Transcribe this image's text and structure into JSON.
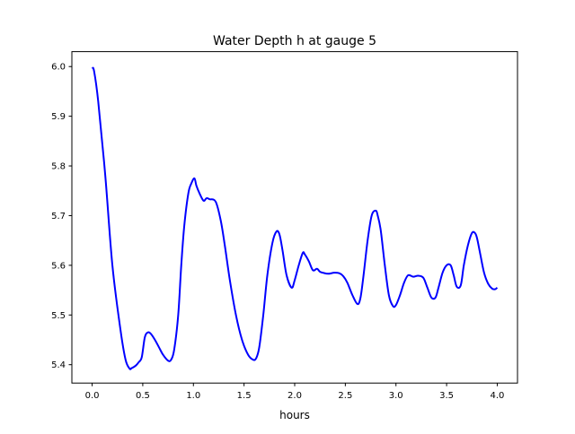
{
  "chart_data": {
    "type": "line",
    "title": "Water Depth h at gauge 5",
    "xlabel": "hours",
    "ylabel": "",
    "xlim": [
      -0.2,
      4.2
    ],
    "ylim": [
      5.363,
      6.03
    ],
    "xticks": [
      0.0,
      0.5,
      1.0,
      1.5,
      2.0,
      2.5,
      3.0,
      3.5,
      4.0
    ],
    "xtick_labels": [
      "0.0",
      "0.5",
      "1.0",
      "1.5",
      "2.0",
      "2.5",
      "3.0",
      "3.5",
      "4.0"
    ],
    "yticks": [
      5.4,
      5.5,
      5.6,
      5.7,
      5.8,
      5.9,
      6.0
    ],
    "ytick_labels": [
      "5.4",
      "5.5",
      "5.6",
      "5.7",
      "5.8",
      "5.9",
      "6.0"
    ],
    "grid": false,
    "series": [
      {
        "name": "h",
        "color": "#0000ff",
        "x": [
          0.0,
          0.02,
          0.06,
          0.13,
          0.2,
          0.28,
          0.33,
          0.37,
          0.39,
          0.43,
          0.46,
          0.49,
          0.52,
          0.55,
          0.58,
          0.62,
          0.66,
          0.7,
          0.75,
          0.78,
          0.81,
          0.85,
          0.88,
          0.91,
          0.95,
          0.98,
          1.01,
          1.03,
          1.06,
          1.1,
          1.13,
          1.16,
          1.22,
          1.27,
          1.31,
          1.36,
          1.42,
          1.48,
          1.54,
          1.59,
          1.62,
          1.65,
          1.69,
          1.73,
          1.78,
          1.82,
          1.85,
          1.88,
          1.92,
          1.97,
          2.0,
          2.04,
          2.08,
          2.1,
          2.14,
          2.18,
          2.22,
          2.25,
          2.28,
          2.33,
          2.39,
          2.44,
          2.48,
          2.52,
          2.57,
          2.62,
          2.65,
          2.68,
          2.72,
          2.76,
          2.8,
          2.82,
          2.85,
          2.89,
          2.93,
          2.97,
          3.0,
          3.04,
          3.08,
          3.12,
          3.17,
          3.22,
          3.27,
          3.31,
          3.35,
          3.39,
          3.42,
          3.46,
          3.5,
          3.54,
          3.57,
          3.6,
          3.64,
          3.67,
          3.71,
          3.75,
          3.78,
          3.8,
          3.83,
          3.87,
          3.91,
          3.95,
          3.98,
          4.0
        ],
        "y": [
          5.998,
          5.99,
          5.93,
          5.78,
          5.6,
          5.47,
          5.41,
          5.392,
          5.393,
          5.398,
          5.405,
          5.415,
          5.455,
          5.465,
          5.462,
          5.45,
          5.435,
          5.42,
          5.408,
          5.41,
          5.43,
          5.5,
          5.6,
          5.68,
          5.745,
          5.765,
          5.775,
          5.76,
          5.745,
          5.73,
          5.735,
          5.733,
          5.728,
          5.69,
          5.64,
          5.57,
          5.5,
          5.45,
          5.42,
          5.41,
          5.413,
          5.435,
          5.5,
          5.58,
          5.645,
          5.668,
          5.662,
          5.63,
          5.58,
          5.555,
          5.57,
          5.6,
          5.625,
          5.622,
          5.608,
          5.59,
          5.593,
          5.587,
          5.585,
          5.583,
          5.585,
          5.584,
          5.578,
          5.565,
          5.54,
          5.522,
          5.535,
          5.58,
          5.65,
          5.7,
          5.71,
          5.7,
          5.67,
          5.6,
          5.54,
          5.518,
          5.52,
          5.54,
          5.565,
          5.58,
          5.577,
          5.579,
          5.575,
          5.555,
          5.535,
          5.535,
          5.555,
          5.585,
          5.6,
          5.6,
          5.58,
          5.557,
          5.56,
          5.6,
          5.64,
          5.665,
          5.665,
          5.655,
          5.625,
          5.585,
          5.563,
          5.553,
          5.552,
          5.555
        ]
      }
    ]
  }
}
